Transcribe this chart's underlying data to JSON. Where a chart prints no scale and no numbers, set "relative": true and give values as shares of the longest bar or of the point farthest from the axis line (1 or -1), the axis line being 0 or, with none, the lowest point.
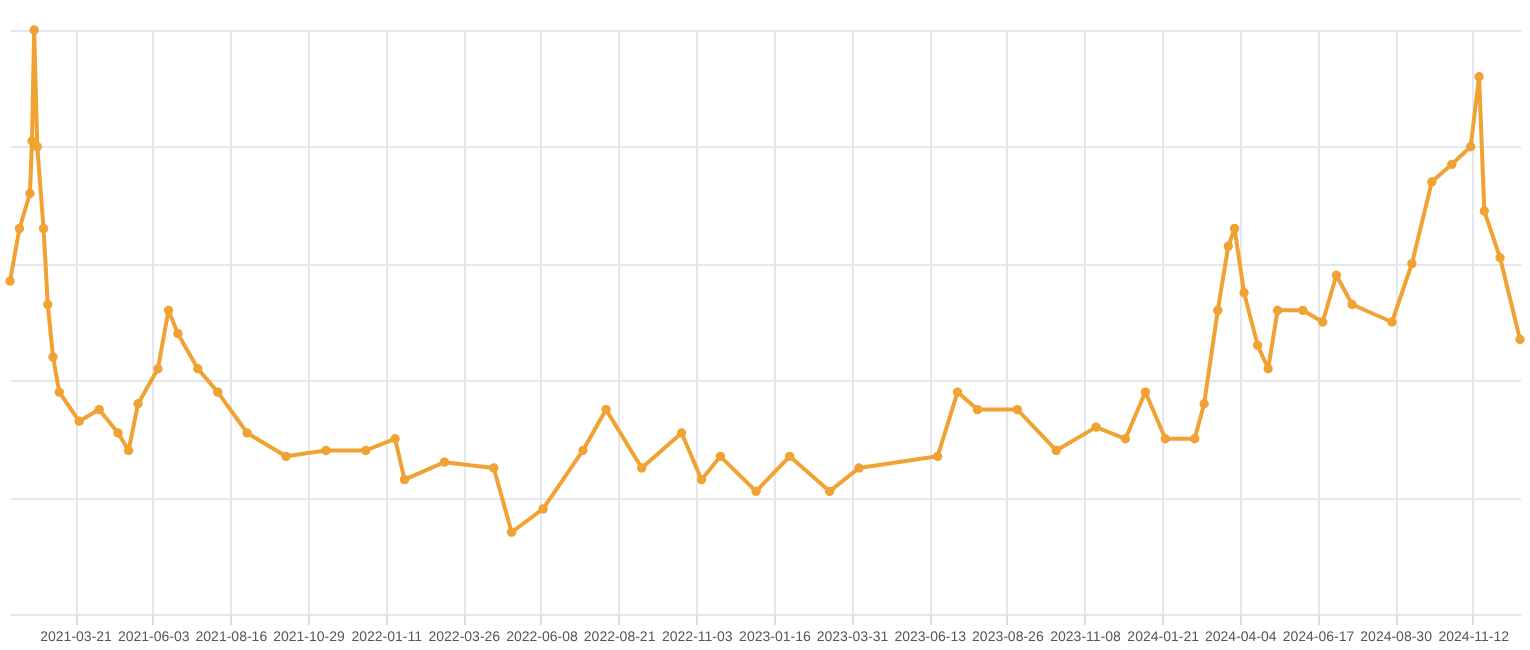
{
  "chart_data": {
    "type": "line",
    "relative": true,
    "marker": "circle",
    "grid": true,
    "xlim": [
      "2021-01-18",
      "2024-12-27"
    ],
    "xticks": [
      "2021-03-21",
      "2021-06-03",
      "2021-08-16",
      "2021-10-29",
      "2022-01-11",
      "2022-03-26",
      "2022-06-08",
      "2022-08-21",
      "2022-11-03",
      "2023-01-16",
      "2023-03-31",
      "2023-06-13",
      "2023-08-26",
      "2023-11-08",
      "2024-01-21",
      "2024-04-04",
      "2024-06-17",
      "2024-08-30",
      "2024-11-12"
    ],
    "x": [
      "2021-01-18",
      "2021-01-27",
      "2021-02-06",
      "2021-02-08",
      "2021-02-10",
      "2021-02-13",
      "2021-02-19",
      "2021-02-23",
      "2021-02-28",
      "2021-03-06",
      "2021-03-25",
      "2021-04-13",
      "2021-05-01",
      "2021-05-11",
      "2021-05-20",
      "2021-06-08",
      "2021-06-18",
      "2021-06-27",
      "2021-07-16",
      "2021-08-04",
      "2021-09-01",
      "2021-10-08",
      "2021-11-15",
      "2021-12-23",
      "2022-01-20",
      "2022-01-29",
      "2022-03-08",
      "2022-04-24",
      "2022-05-11",
      "2022-06-10",
      "2022-07-18",
      "2022-08-09",
      "2022-09-12",
      "2022-10-20",
      "2022-11-08",
      "2022-11-26",
      "2022-12-30",
      "2023-01-31",
      "2023-03-10",
      "2023-04-07",
      "2023-06-21",
      "2023-07-10",
      "2023-07-29",
      "2023-09-05",
      "2023-10-12",
      "2023-11-19",
      "2023-12-17",
      "2024-01-05",
      "2024-01-24",
      "2024-02-21",
      "2024-03-01",
      "2024-03-14",
      "2024-03-24",
      "2024-03-30",
      "2024-04-08",
      "2024-04-21",
      "2024-05-01",
      "2024-05-10",
      "2024-06-03",
      "2024-06-22",
      "2024-07-05",
      "2024-07-20",
      "2024-08-27",
      "2024-09-15",
      "2024-10-04",
      "2024-10-23",
      "2024-11-10",
      "2024-11-18",
      "2024-11-23",
      "2024-12-08",
      "2024-12-27"
    ],
    "series": [
      {
        "color": "#f0a233",
        "values": [
          0.57,
          0.66,
          0.72,
          0.81,
          1.0,
          0.8,
          0.66,
          0.53,
          0.44,
          0.38,
          0.33,
          0.35,
          0.31,
          0.28,
          0.36,
          0.42,
          0.52,
          0.48,
          0.42,
          0.38,
          0.31,
          0.27,
          0.28,
          0.28,
          0.3,
          0.23,
          0.26,
          0.25,
          0.14,
          0.18,
          0.28,
          0.35,
          0.25,
          0.31,
          0.23,
          0.27,
          0.21,
          0.27,
          0.21,
          0.25,
          0.27,
          0.38,
          0.35,
          0.35,
          0.28,
          0.32,
          0.3,
          0.38,
          0.3,
          0.3,
          0.36,
          0.52,
          0.63,
          0.66,
          0.55,
          0.46,
          0.42,
          0.52,
          0.52,
          0.5,
          0.58,
          0.53,
          0.5,
          0.6,
          0.74,
          0.77,
          0.8,
          0.92,
          0.69,
          0.61,
          0.47
        ]
      }
    ]
  }
}
